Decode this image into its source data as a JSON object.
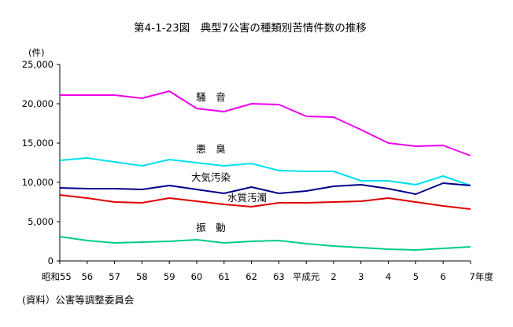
{
  "chart_data": {
    "type": "line",
    "title": "第4-1-23図　典型7公害の種類別苦情件数の推移",
    "ylabel": "(件)",
    "xlabel": "",
    "ylim": [
      0,
      25000
    ],
    "yticks": [
      "0",
      "5,000",
      "10,000",
      "15,000",
      "20,000",
      "25,000"
    ],
    "categories": [
      "昭和55",
      "56",
      "57",
      "58",
      "59",
      "60",
      "61",
      "62",
      "63",
      "平成元",
      "2",
      "3",
      "4",
      "5",
      "6",
      "7年度"
    ],
    "grid": false,
    "legend": "labels placed beside each line",
    "series": [
      {
        "name": "騒　音",
        "color": "#ee00ee",
        "values": [
          21100,
          21100,
          21100,
          20700,
          21600,
          19400,
          19000,
          20000,
          19900,
          18400,
          18300,
          16700,
          15000,
          14600,
          14700,
          13400
        ]
      },
      {
        "name": "悪　臭",
        "color": "#00e0ee",
        "values": [
          12800,
          13100,
          12600,
          12100,
          12900,
          12500,
          12100,
          12400,
          11500,
          11400,
          11400,
          10200,
          10200,
          9700,
          10800,
          9600
        ]
      },
      {
        "name": "大気汚染",
        "color": "#00008b",
        "values": [
          9300,
          9200,
          9200,
          9100,
          9600,
          9100,
          8600,
          9400,
          8600,
          8900,
          9500,
          9700,
          9200,
          8500,
          9900,
          9600
        ]
      },
      {
        "name": "水質汚濁",
        "color": "#e00000",
        "values": [
          8400,
          8000,
          7500,
          7400,
          8000,
          7600,
          7200,
          6900,
          7400,
          7400,
          7500,
          7600,
          8000,
          7500,
          7000,
          6600
        ]
      },
      {
        "name": "振　動",
        "color": "#00cc88",
        "values": [
          3100,
          2600,
          2300,
          2400,
          2500,
          2700,
          2300,
          2500,
          2600,
          2200,
          1900,
          1700,
          1500,
          1400,
          1600,
          1800
        ]
      }
    ]
  },
  "source": "(資料）公害等調整委員会"
}
